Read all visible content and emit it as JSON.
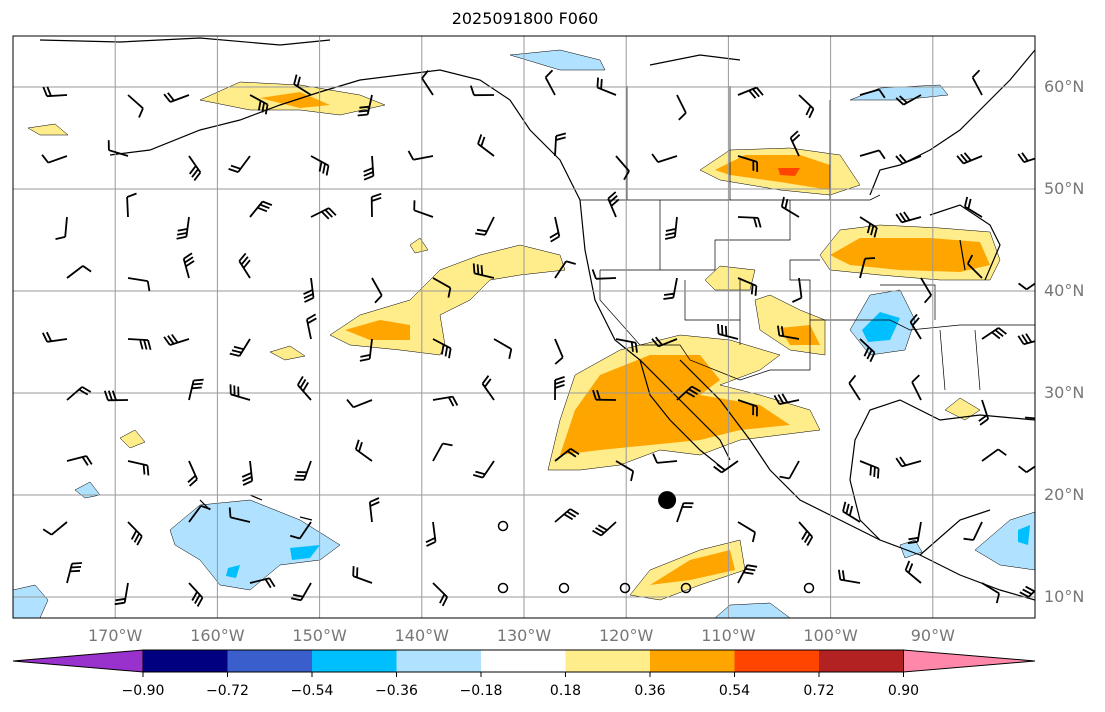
{
  "title": "2025091800 F060",
  "lon_labels": [
    "170°W",
    "160°W",
    "150°W",
    "140°W",
    "130°W",
    "120°W",
    "110°W",
    "100°W",
    "90°W"
  ],
  "lat_labels": [
    "60°N",
    "50°N",
    "40°N",
    "30°N",
    "20°N",
    "10°N"
  ],
  "colorbar": {
    "ticks": [
      "−0.90",
      "−0.72",
      "−0.54",
      "−0.36",
      "−0.18",
      "0.18",
      "0.36",
      "0.54",
      "0.72",
      "0.90"
    ],
    "colors": [
      "#9932CC",
      "#000080",
      "#3A5FCD",
      "#00BFFF",
      "#B0E2FF",
      "#FFFFFF",
      "#FFEC8B",
      "#FFA500",
      "#FF4500",
      "#B22222",
      "#FF88AA"
    ]
  },
  "marker": {
    "lon": -116,
    "lat": 19.5
  }
}
